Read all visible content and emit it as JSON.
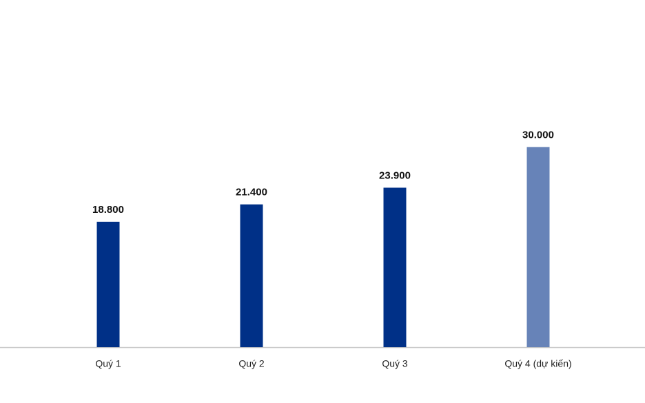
{
  "chart_data": {
    "type": "bar",
    "categories": [
      "Quý 1",
      "Quý 2",
      "Quý 3",
      "Quý 4 (dự kiến)"
    ],
    "values": [
      18800,
      21400,
      23900,
      30000
    ],
    "value_labels": [
      "18.800",
      "21.400",
      "23.900",
      "30.000"
    ],
    "colors": [
      "#003087",
      "#003087",
      "#003087",
      "#6783b8"
    ],
    "ylim": [
      0,
      32000
    ]
  }
}
